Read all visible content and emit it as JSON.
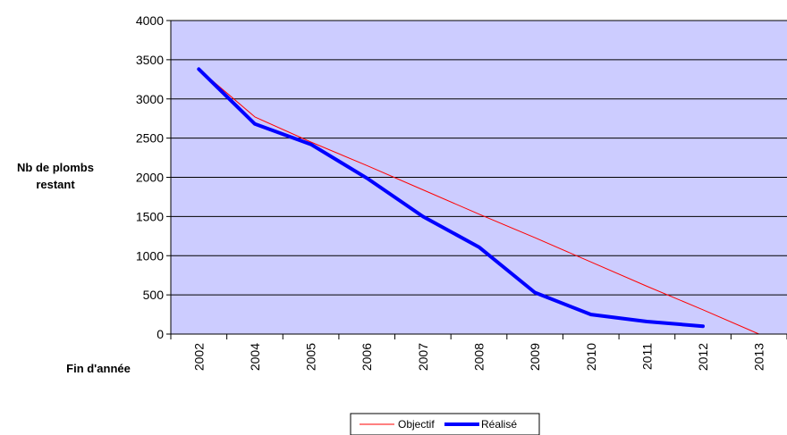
{
  "chart_data": {
    "type": "line",
    "categories": [
      "2002",
      "2004",
      "2005",
      "2006",
      "2007",
      "2008",
      "2009",
      "2010",
      "2011",
      "2012",
      "2013"
    ],
    "ylim": [
      0,
      4000
    ],
    "yticks": [
      0,
      500,
      1000,
      1500,
      2000,
      2500,
      3000,
      3500,
      4000
    ],
    "ylabel_line1": "Nb de plombs",
    "ylabel_line2": "restant",
    "xlabel": "Fin d'année",
    "grid": true,
    "legend_position": "bottom",
    "colors": {
      "plot_background": "#ccccff",
      "gridline": "#000000",
      "objectif": "#ff0000",
      "realise": "#0000ff"
    },
    "series": [
      {
        "name": "Objectif",
        "values": [
          3380,
          2770,
          2450,
          2150,
          1840,
          1530,
          1230,
          920,
          610,
          310,
          0
        ]
      },
      {
        "name": "Réalisé",
        "values": [
          3380,
          2680,
          2420,
          1990,
          1500,
          1110,
          530,
          250,
          160,
          100,
          null
        ]
      }
    ]
  }
}
